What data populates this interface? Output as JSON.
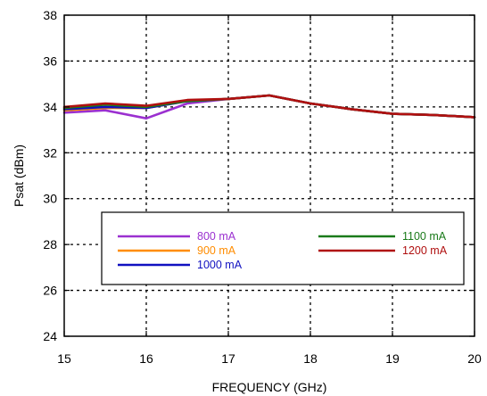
{
  "chart_data": {
    "type": "line",
    "title": "",
    "xlabel": "FREQUENCY (GHz)",
    "ylabel": "Psat (dBm)",
    "xlim": [
      15,
      20
    ],
    "ylim": [
      24,
      38
    ],
    "x_ticks": [
      15,
      16,
      17,
      18,
      19,
      20
    ],
    "y_ticks": [
      24,
      26,
      28,
      30,
      32,
      34,
      36,
      38
    ],
    "grid": "dashed",
    "legend_position": "lower-center",
    "x": [
      15,
      15.5,
      16,
      16.5,
      17,
      17.5,
      18,
      18.5,
      19,
      19.5,
      20
    ],
    "series": [
      {
        "name": "800 mA",
        "color": "#9b30d0",
        "values": [
          33.75,
          33.85,
          33.5,
          34.15,
          34.35,
          34.5,
          34.15,
          33.9,
          33.7,
          33.65,
          33.55
        ]
      },
      {
        "name": "900 mA",
        "color": "#ff8c00",
        "values": [
          33.85,
          33.95,
          33.95,
          34.25,
          34.35,
          34.5,
          34.15,
          33.9,
          33.7,
          33.65,
          33.55
        ]
      },
      {
        "name": "1000 mA",
        "color": "#1010c0",
        "values": [
          33.9,
          34.0,
          33.95,
          34.25,
          34.35,
          34.5,
          34.15,
          33.9,
          33.7,
          33.65,
          33.55
        ]
      },
      {
        "name": "1100 mA",
        "color": "#1a7a1a",
        "values": [
          33.95,
          34.1,
          34.0,
          34.25,
          34.35,
          34.5,
          34.15,
          33.9,
          33.7,
          33.65,
          33.55
        ]
      },
      {
        "name": "1200 mA",
        "color": "#b01010",
        "values": [
          34.0,
          34.15,
          34.05,
          34.3,
          34.35,
          34.5,
          34.15,
          33.9,
          33.7,
          33.65,
          33.55
        ]
      }
    ]
  }
}
